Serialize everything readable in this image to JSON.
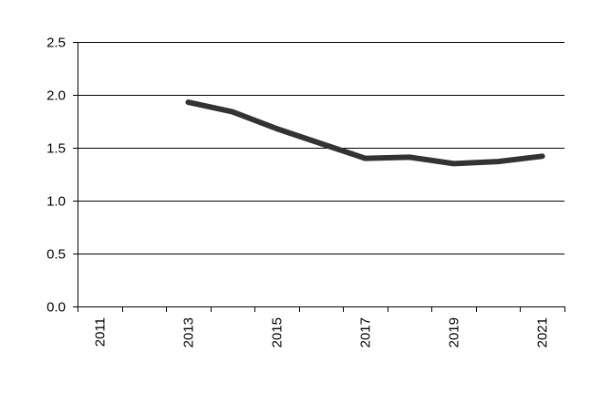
{
  "chart_data": {
    "type": "line",
    "title": "",
    "xlabel": "",
    "ylabel": "",
    "x": [
      2013,
      2014,
      2015,
      2016,
      2017,
      2018,
      2019,
      2020,
      2021
    ],
    "series": [
      {
        "values": [
          1.93,
          1.84,
          1.68,
          1.54,
          1.4,
          1.41,
          1.35,
          1.37,
          1.42
        ]
      }
    ],
    "xlim": [
      2010.5,
      2021.5
    ],
    "ylim": [
      0,
      2.5
    ],
    "x_tick_labels": [
      "2011",
      "2013",
      "2015",
      "2017",
      "2019",
      "2021"
    ],
    "y_tick_labels": [
      "0.0",
      "0.5",
      "1.0",
      "1.5",
      "2.0",
      "2.5"
    ],
    "grid": "horizontal",
    "legend": "none",
    "colors": {
      "line": "#333333",
      "gridline": "#000000",
      "axis": "#000000"
    }
  }
}
